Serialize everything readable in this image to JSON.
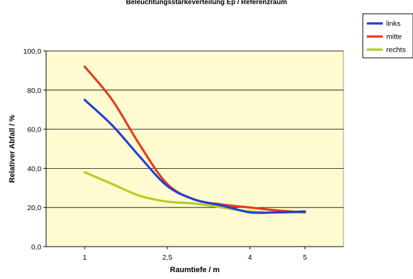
{
  "chart_data": {
    "type": "line",
    "title": "Beleuchtungsstärkeverteilung  Ep  /  Referenzraum",
    "xlabel": "Raumtiefe  /  m",
    "ylabel": "Relativer Abfall / %",
    "x_ticks": [
      "1",
      "2,5",
      "4",
      "5"
    ],
    "x_tick_values": [
      1,
      2.5,
      4,
      5
    ],
    "x_range": [
      0.3,
      5.7
    ],
    "ylim": [
      0,
      100
    ],
    "y_ticks": [
      0,
      20,
      40,
      60,
      80,
      100
    ],
    "y_tick_labels": [
      "0,0",
      "20,0",
      "40,0",
      "60,0",
      "80,0",
      "100,0"
    ],
    "grid": true,
    "legend_position": "top-right",
    "plot_background": "#fdfbcf",
    "series": [
      {
        "name": "links",
        "color": "#1f3fd6",
        "x": [
          1,
          1.5,
          2,
          2.5,
          3,
          3.5,
          4,
          4.5,
          5
        ],
        "y": [
          75,
          62,
          46,
          31,
          24,
          21,
          17.5,
          17.5,
          18
        ]
      },
      {
        "name": "mitte",
        "color": "#e8391a",
        "x": [
          1,
          1.5,
          2,
          2.5,
          3,
          3.5,
          4,
          4.5,
          5
        ],
        "y": [
          92,
          75,
          52,
          32,
          24,
          21.5,
          20,
          18.5,
          17.5
        ]
      },
      {
        "name": "rechts",
        "color": "#b6cc1e",
        "x": [
          1,
          1.5,
          2,
          2.5,
          3,
          3.5,
          4,
          4.5,
          5
        ],
        "y": [
          38,
          32,
          26,
          23,
          22,
          20,
          18,
          17.5,
          17.5
        ]
      }
    ]
  }
}
